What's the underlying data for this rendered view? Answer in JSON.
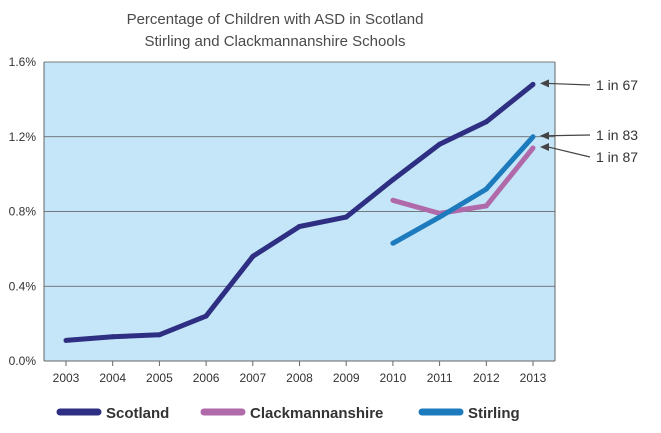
{
  "chart_data": {
    "type": "line",
    "title": [
      "Percentage of Children with ASD in Scotland",
      "Stirling and Clackmannanshire Schools"
    ],
    "x": [
      "2003",
      "2004",
      "2005",
      "2006",
      "2007",
      "2008",
      "2009",
      "2010",
      "2011",
      "2012",
      "2013"
    ],
    "y_tick_labels": [
      "0.0%",
      "0.4%",
      "0.8%",
      "1.2%",
      "1.6%"
    ],
    "y_ticks": [
      0,
      0.4,
      0.8,
      1.2,
      1.6
    ],
    "ylim": [
      0,
      1.6
    ],
    "grid": true,
    "legend_position": "bottom",
    "colors": {
      "plot_background": "#c5e6f8",
      "grid": "#555555",
      "axis": "#666666"
    },
    "series": [
      {
        "name": "Scotland",
        "color": "#2e2f82",
        "values": [
          0.11,
          0.13,
          0.14,
          0.24,
          0.56,
          0.72,
          0.77,
          0.97,
          1.16,
          1.28,
          1.48
        ]
      },
      {
        "name": "Clackmannanshire",
        "color": "#b06aaa",
        "values": [
          null,
          null,
          null,
          null,
          null,
          null,
          null,
          0.86,
          0.79,
          0.83,
          1.14
        ]
      },
      {
        "name": "Stirling",
        "color": "#1d7bbd",
        "values": [
          null,
          null,
          null,
          null,
          null,
          null,
          null,
          0.63,
          0.77,
          0.92,
          1.2
        ]
      }
    ],
    "annotations": [
      {
        "text": "1 in 67",
        "series": "Scotland"
      },
      {
        "text": "1 in 83",
        "series": "Stirling"
      },
      {
        "text": "1 in 87",
        "series": "Clackmannanshire"
      }
    ]
  }
}
